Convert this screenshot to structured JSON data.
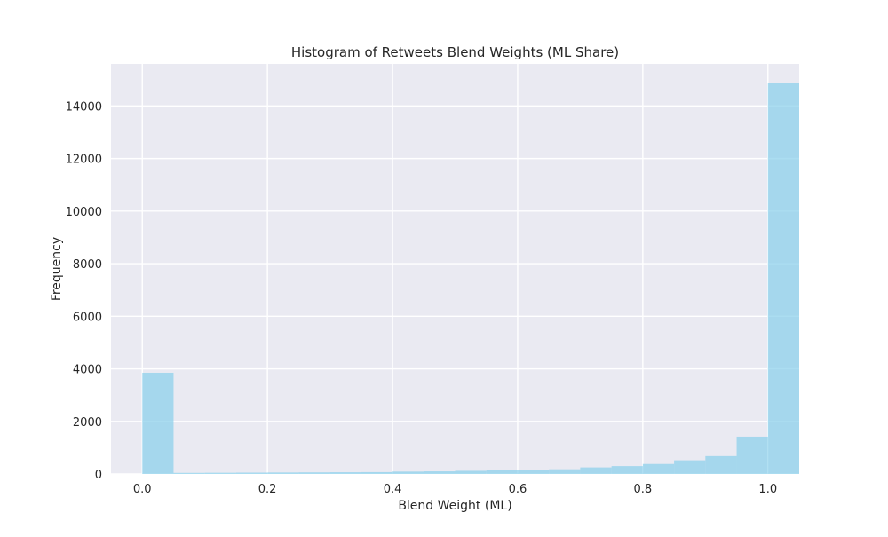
{
  "chart_data": {
    "type": "bar",
    "title": "Histogram of Retweets Blend Weights (ML Share)",
    "xlabel": "Blend Weight (ML)",
    "ylabel": "Frequency",
    "xlim": [
      -0.05,
      1.05
    ],
    "ylim": [
      0,
      15600
    ],
    "x_ticks": [
      0.0,
      0.2,
      0.4,
      0.6,
      0.8,
      1.0
    ],
    "x_tick_labels": [
      "0.0",
      "0.2",
      "0.4",
      "0.6",
      "0.8",
      "1.0"
    ],
    "y_ticks": [
      0,
      2000,
      4000,
      6000,
      8000,
      10000,
      12000,
      14000
    ],
    "y_tick_labels": [
      "0",
      "2000",
      "4000",
      "6000",
      "8000",
      "10000",
      "12000",
      "14000"
    ],
    "grid": true,
    "bin_width": 0.05,
    "bin_edges": [
      0.0,
      0.05,
      0.1,
      0.15,
      0.2,
      0.25,
      0.3,
      0.35,
      0.4,
      0.45,
      0.5,
      0.55,
      0.6,
      0.65,
      0.7,
      0.75,
      0.8,
      0.85,
      0.9,
      0.95,
      1.0
    ],
    "values": [
      3850,
      40,
      45,
      50,
      55,
      60,
      65,
      70,
      90,
      100,
      120,
      140,
      160,
      180,
      250,
      300,
      380,
      520,
      680,
      1420,
      14880
    ],
    "colors": {
      "bar": "#87ceeb",
      "plot_background": "#eaeaf2",
      "grid": "#ffffff"
    }
  }
}
